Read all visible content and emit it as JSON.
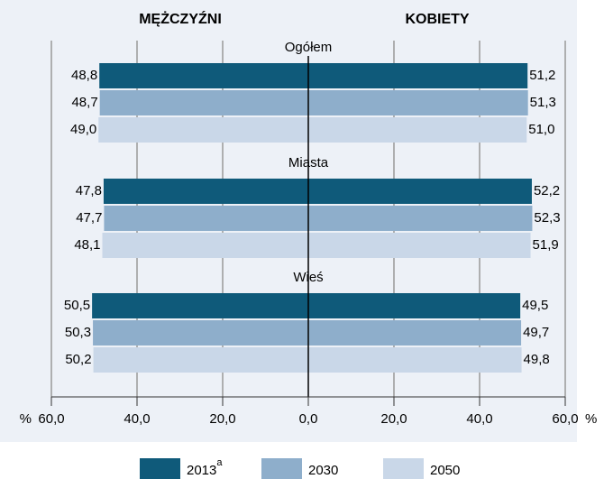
{
  "chart_data": {
    "type": "pyramid",
    "left_title": "MĘŻCZYŹNI",
    "right_title": "KOBIETY",
    "x_unit": "%",
    "groups": [
      "Ogółem",
      "Miasta",
      "Wieś"
    ],
    "series": [
      {
        "name": "2013",
        "name_note": "a",
        "color": "#0f5a7a",
        "men": [
          48.8,
          47.8,
          50.5
        ],
        "men_labels": [
          "48,8",
          "47,8",
          "50,5"
        ],
        "women": [
          51.2,
          52.2,
          49.5
        ],
        "women_labels": [
          "51,2",
          "52,2",
          "49,5"
        ]
      },
      {
        "name": "2030",
        "color": "#8eaecb",
        "men": [
          48.7,
          47.7,
          50.3
        ],
        "men_labels": [
          "48,7",
          "47,7",
          "50,3"
        ],
        "women": [
          51.3,
          52.3,
          49.7
        ],
        "women_labels": [
          "51,3",
          "52,3",
          "49,7"
        ]
      },
      {
        "name": "2050",
        "color": "#c9d7e8",
        "men": [
          49.0,
          48.1,
          50.2
        ],
        "men_labels": [
          "49,0",
          "48,1",
          "50,2"
        ],
        "women": [
          51.0,
          51.9,
          49.8
        ],
        "women_labels": [
          "51,0",
          "51,9",
          "49,8"
        ]
      }
    ],
    "xlim": [
      -60,
      60
    ],
    "xticks": [
      {
        "value": -60,
        "label": "60,0"
      },
      {
        "value": -40,
        "label": "40,0"
      },
      {
        "value": -20,
        "label": "20,0"
      },
      {
        "value": 0,
        "label": "0,0"
      },
      {
        "value": 20,
        "label": "20,0"
      },
      {
        "value": 40,
        "label": "40,0"
      },
      {
        "value": 60,
        "label": "60,0"
      }
    ],
    "grid": true
  }
}
